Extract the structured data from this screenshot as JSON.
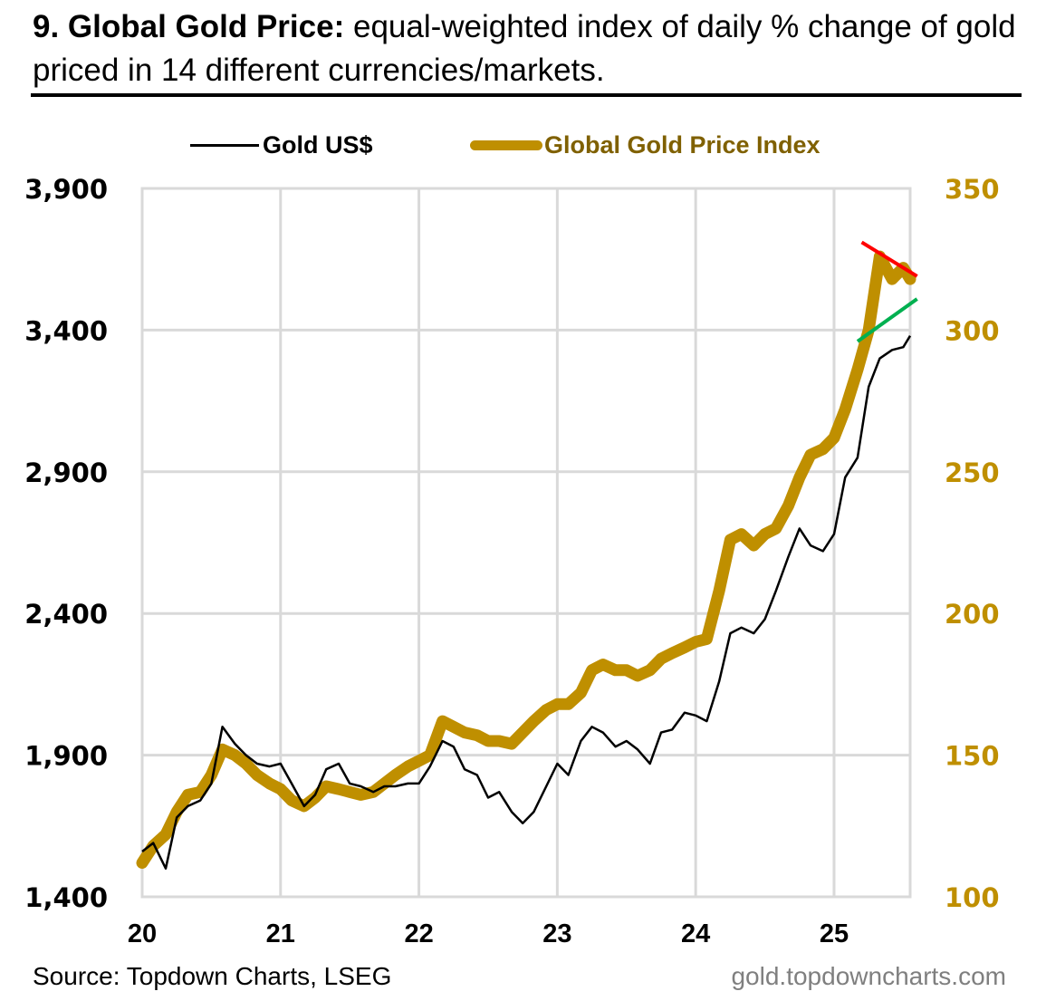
{
  "header": {
    "title_bold": "9. Global Gold Price:",
    "title_rest": " equal-weighted index of daily % change of gold priced in 14 different currencies/markets."
  },
  "legend": [
    {
      "label": "Gold US$",
      "color": "#000000"
    },
    {
      "label": "Global Gold Price Index",
      "color": "#bf8f00"
    }
  ],
  "footer": {
    "source": "Source: Topdown Charts, LSEG",
    "website": "gold.topdowncharts.com"
  },
  "chart_data": {
    "type": "line",
    "title": "9. Global Gold Price: equal-weighted index of daily % change of gold priced in 14 different currencies/markets.",
    "xlabel": "",
    "x_ticks": [
      "20",
      "21",
      "22",
      "23",
      "24",
      "25"
    ],
    "x_range": [
      2020.0,
      2025.55
    ],
    "y_left": {
      "label": "Gold US$",
      "range": [
        1400,
        3900
      ],
      "ticks": [
        "3,900",
        "3,400",
        "2,900",
        "2,400",
        "1,900",
        "1,400"
      ],
      "color": "#000000"
    },
    "y_right": {
      "label": "Global Gold Price Index",
      "range": [
        100,
        350
      ],
      "ticks": [
        "350",
        "300",
        "250",
        "200",
        "150",
        "100"
      ],
      "color": "#bf8f00"
    },
    "grid": true,
    "legend_position": "top-center",
    "x": [
      2020.0,
      2020.08,
      2020.17,
      2020.25,
      2020.33,
      2020.42,
      2020.5,
      2020.58,
      2020.67,
      2020.75,
      2020.83,
      2020.92,
      2021.0,
      2021.08,
      2021.17,
      2021.25,
      2021.33,
      2021.42,
      2021.5,
      2021.58,
      2021.67,
      2021.75,
      2021.83,
      2021.92,
      2022.0,
      2022.08,
      2022.17,
      2022.25,
      2022.33,
      2022.42,
      2022.5,
      2022.58,
      2022.67,
      2022.75,
      2022.83,
      2022.92,
      2023.0,
      2023.08,
      2023.17,
      2023.25,
      2023.33,
      2023.42,
      2023.5,
      2023.58,
      2023.67,
      2023.75,
      2023.83,
      2023.92,
      2024.0,
      2024.08,
      2024.17,
      2024.25,
      2024.33,
      2024.42,
      2024.5,
      2024.58,
      2024.67,
      2024.75,
      2024.83,
      2024.92,
      2025.0,
      2025.08,
      2025.17,
      2025.25,
      2025.33,
      2025.42,
      2025.5,
      2025.55
    ],
    "series": [
      {
        "name": "Gold US$",
        "axis": "left",
        "values": [
          1560,
          1590,
          1500,
          1680,
          1720,
          1740,
          1800,
          2000,
          1940,
          1900,
          1870,
          1860,
          1870,
          1800,
          1720,
          1760,
          1850,
          1870,
          1800,
          1790,
          1770,
          1790,
          1790,
          1800,
          1800,
          1860,
          1950,
          1930,
          1850,
          1830,
          1750,
          1770,
          1700,
          1660,
          1700,
          1790,
          1870,
          1830,
          1950,
          2000,
          1980,
          1930,
          1950,
          1920,
          1870,
          1980,
          1990,
          2050,
          2040,
          2020,
          2160,
          2330,
          2350,
          2330,
          2380,
          2480,
          2600,
          2700,
          2640,
          2620,
          2680,
          2880,
          2950,
          3200,
          3300,
          3330,
          3340,
          3380
        ]
      },
      {
        "name": "Global Gold Price Index",
        "axis": "right",
        "values": [
          112,
          118,
          122,
          130,
          136,
          137,
          143,
          152,
          150,
          147,
          143,
          140,
          138,
          134,
          132,
          135,
          139,
          138,
          137,
          136,
          137,
          140,
          143,
          146,
          148,
          150,
          162,
          160,
          158,
          157,
          155,
          155,
          154,
          158,
          162,
          166,
          168,
          168,
          172,
          180,
          182,
          180,
          180,
          178,
          180,
          184,
          186,
          188,
          190,
          191,
          208,
          226,
          228,
          224,
          228,
          230,
          238,
          248,
          256,
          258,
          262,
          272,
          286,
          300,
          326,
          318,
          322,
          318
        ]
      }
    ],
    "annotations": [
      {
        "type": "trendline",
        "color": "#ff0000",
        "from": [
          2025.2,
          331
        ],
        "to": [
          2025.6,
          319
        ],
        "description": "falling resistance on index highs"
      },
      {
        "type": "trendline",
        "color": "#00b050",
        "from": [
          2025.17,
          296
        ],
        "to": [
          2025.6,
          311
        ],
        "description": "rising support on index lows"
      }
    ]
  }
}
